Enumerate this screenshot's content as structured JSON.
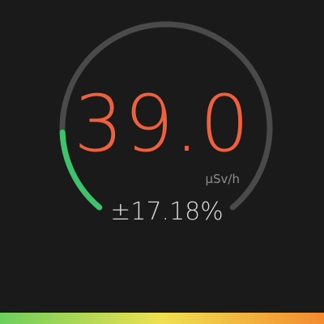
{
  "dose_rate": {
    "value": "39.0",
    "unit": "µSv/h",
    "uncertainty": "±17.18%",
    "gauge_fraction": 0.17
  },
  "colors": {
    "background": "#1a1a1a",
    "value_text": "#f0603e",
    "unit_text": "#8c8c8c",
    "uncertainty_text": "#d8d8d8",
    "gauge_track": "#4a4a4a",
    "gauge_fill": "#3ec36c",
    "bar_low": "#6ccf5c",
    "bar_mid": "#f0e050",
    "bar_high": "#f38a2e"
  }
}
